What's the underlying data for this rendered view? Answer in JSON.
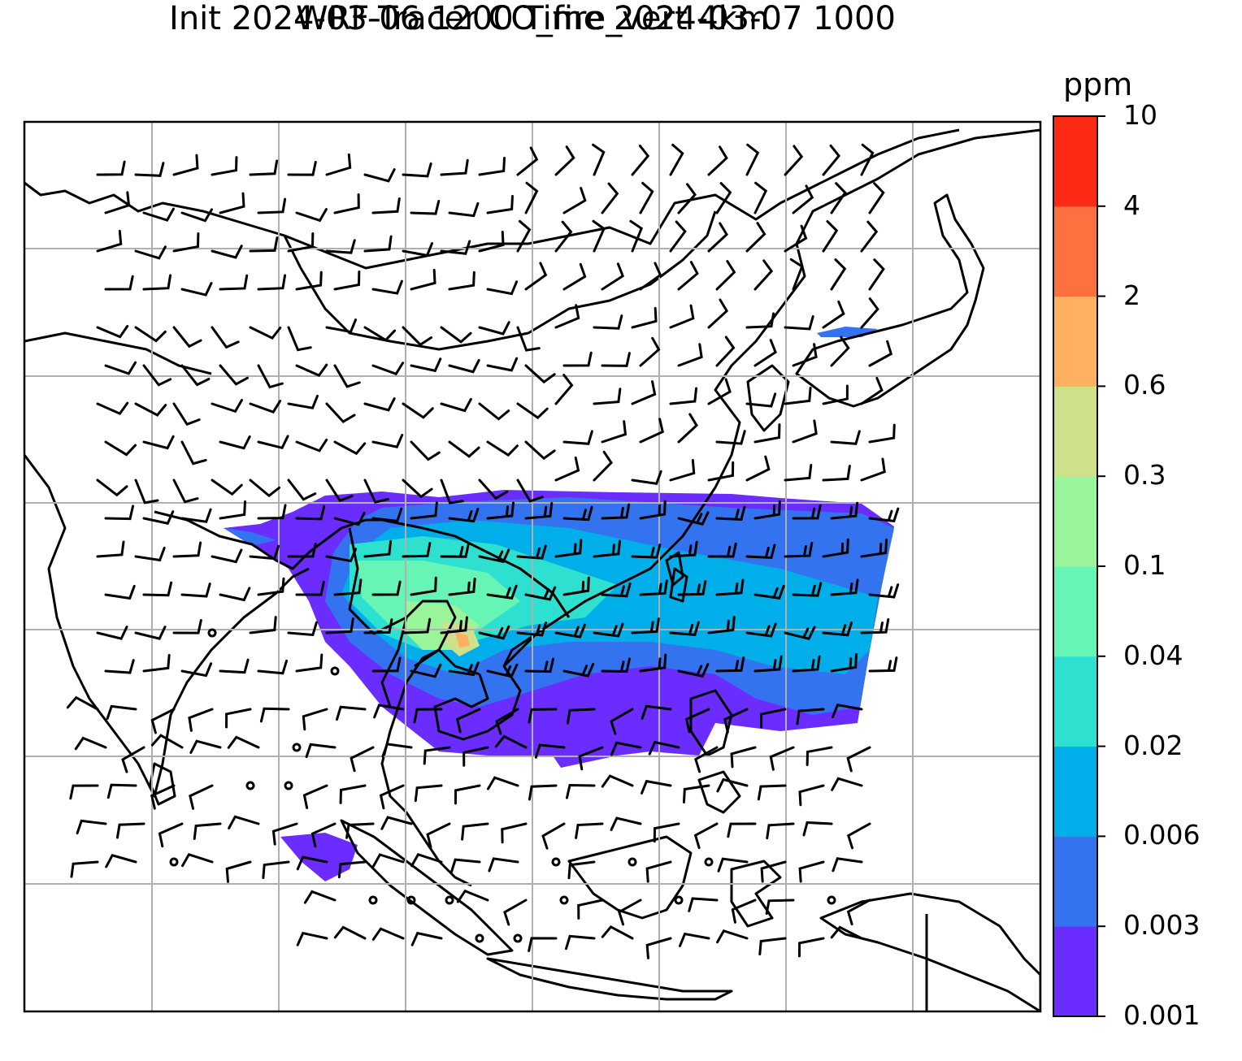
{
  "title_line1": "WRF-Tracer CO_fire_vert 4km",
  "title_line2": "Init 2024-03-06 1200 Time 2024-03-07 1000",
  "colorbar": {
    "unit": "ppm",
    "levels": [
      "0.001",
      "0.003",
      "0.006",
      "0.02",
      "0.04",
      "0.1",
      "0.3",
      "0.6",
      "2",
      "4",
      "10"
    ],
    "colors": [
      "#6a2cff",
      "#3373f0",
      "#00aeea",
      "#2ee0d0",
      "#66f5b5",
      "#9af59a",
      "#cfe08a",
      "#ffb060",
      "#ff7040",
      "#ff2a15"
    ]
  },
  "map": {
    "variable": "CO_fire_vert",
    "overlays": [
      "wind-barbs",
      "coastlines",
      "country-borders",
      "gridlines"
    ],
    "plume_peak_level": "0.6"
  }
}
